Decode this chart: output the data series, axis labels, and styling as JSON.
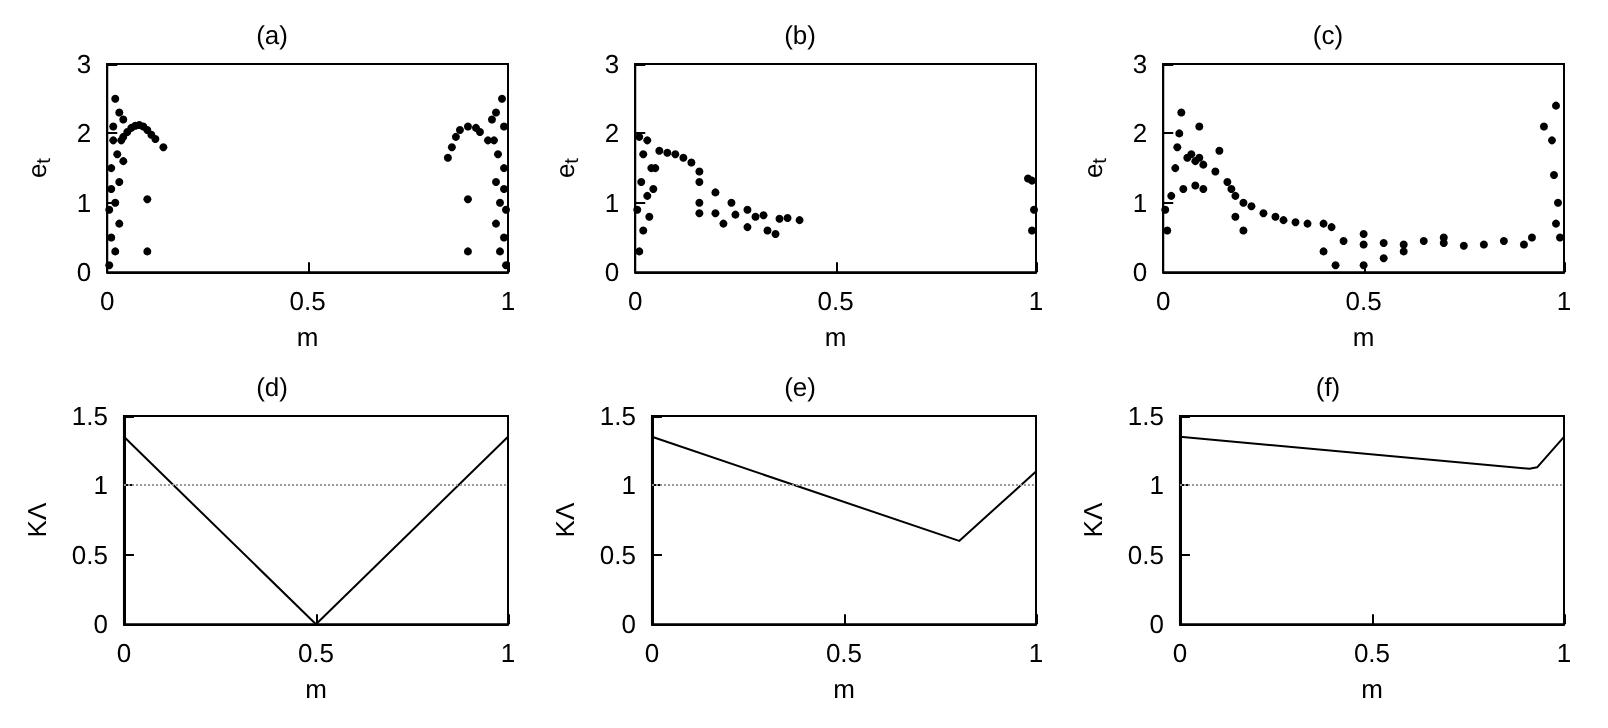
{
  "chart_data": [
    {
      "type": "scatter",
      "title": "(a)",
      "xlabel": "m",
      "ylabel": "e$_{t}$",
      "xlim": [
        0,
        1
      ],
      "ylim": [
        0,
        3
      ],
      "xticks": [
        0,
        0.5,
        1
      ],
      "yticks": [
        0,
        1,
        2,
        3
      ],
      "grid": false,
      "marker": "circle",
      "series": [
        {
          "color": "#000000",
          "x": [
            0.005,
            0.01,
            0.02,
            0.005,
            0.02,
            0.03,
            0.01,
            0.025,
            0.035,
            0.015,
            0.03,
            0.02,
            0.04,
            0.01,
            0.03,
            0.015,
            0.04,
            0.04,
            0.05,
            0.06,
            0.07,
            0.08,
            0.09,
            0.1,
            0.11,
            0.12,
            0.14,
            0.1,
            0.1,
            0.9,
            0.9,
            0.85,
            0.86,
            0.87,
            0.88,
            0.9,
            0.92,
            0.93,
            0.95,
            0.995,
            0.99,
            0.98,
            0.995,
            0.98,
            0.97,
            0.99,
            0.975,
            0.965,
            0.99,
            0.97,
            0.985,
            0.96,
            0.99,
            0.97
          ],
          "values": [
            0.1,
            0.5,
            0.3,
            0.9,
            1.0,
            1.3,
            1.5,
            1.7,
            1.9,
            2.1,
            2.3,
            2.5,
            2.2,
            1.2,
            0.7,
            1.9,
            1.6,
            1.95,
            2.02,
            2.08,
            2.11,
            2.12,
            2.1,
            2.05,
            1.98,
            1.92,
            1.8,
            1.05,
            0.3,
            0.3,
            1.05,
            1.65,
            1.8,
            1.95,
            2.05,
            2.1,
            2.08,
            2.02,
            1.9,
            0.1,
            0.5,
            0.3,
            0.9,
            1.0,
            1.3,
            1.5,
            1.7,
            1.9,
            2.1,
            2.3,
            2.5,
            2.2,
            1.2,
            0.7
          ]
        }
      ]
    },
    {
      "type": "scatter",
      "title": "(b)",
      "xlabel": "m",
      "ylabel": "e$_{t}$",
      "xlim": [
        0,
        1
      ],
      "ylim": [
        0,
        3
      ],
      "xticks": [
        0,
        0.5,
        1
      ],
      "yticks": [
        0,
        1,
        2,
        3
      ],
      "grid": false,
      "marker": "circle",
      "series": [
        {
          "color": "#000000",
          "x": [
            0.01,
            0.02,
            0.005,
            0.03,
            0.015,
            0.04,
            0.02,
            0.03,
            0.01,
            0.045,
            0.035,
            0.05,
            0.06,
            0.08,
            0.1,
            0.12,
            0.14,
            0.16,
            0.16,
            0.16,
            0.16,
            0.2,
            0.24,
            0.28,
            0.32,
            0.36,
            0.2,
            0.25,
            0.3,
            0.22,
            0.28,
            0.33,
            0.35,
            0.38,
            0.41,
            0.98,
            0.99,
            0.995,
            0.99
          ],
          "values": [
            0.3,
            0.6,
            0.9,
            1.1,
            1.3,
            1.5,
            1.7,
            1.9,
            1.95,
            1.2,
            0.8,
            1.5,
            1.75,
            1.72,
            1.7,
            1.65,
            1.58,
            1.45,
            1.3,
            1.0,
            0.85,
            1.15,
            1.0,
            0.9,
            0.82,
            0.77,
            0.85,
            0.83,
            0.8,
            0.7,
            0.65,
            0.6,
            0.55,
            0.78,
            0.75,
            1.35,
            1.32,
            0.9,
            0.6
          ]
        }
      ]
    },
    {
      "type": "scatter",
      "title": "(c)",
      "xlabel": "m",
      "ylabel": "e$_{t}$",
      "xlim": [
        0,
        1
      ],
      "ylim": [
        0,
        3
      ],
      "xticks": [
        0,
        0.5,
        1
      ],
      "yticks": [
        0,
        1,
        2,
        3
      ],
      "grid": false,
      "marker": "circle",
      "series": [
        {
          "color": "#000000",
          "x": [
            0.01,
            0.005,
            0.02,
            0.03,
            0.04,
            0.045,
            0.035,
            0.05,
            0.06,
            0.07,
            0.08,
            0.09,
            0.1,
            0.09,
            0.13,
            0.14,
            0.08,
            0.1,
            0.16,
            0.17,
            0.18,
            0.2,
            0.22,
            0.25,
            0.28,
            0.3,
            0.33,
            0.36,
            0.4,
            0.42,
            0.2,
            0.18,
            0.4,
            0.43,
            0.45,
            0.5,
            0.55,
            0.6,
            0.65,
            0.7,
            0.75,
            0.8,
            0.85,
            0.9,
            0.92,
            0.5,
            0.5,
            0.6,
            0.7,
            0.55,
            0.95,
            0.97,
            0.98,
            0.975,
            0.985,
            0.99,
            0.98
          ],
          "values": [
            0.6,
            0.9,
            1.1,
            1.5,
            2.0,
            2.3,
            1.8,
            1.2,
            1.65,
            1.7,
            1.6,
            1.65,
            1.55,
            2.1,
            1.45,
            1.75,
            1.25,
            1.2,
            1.3,
            1.2,
            1.1,
            1.0,
            0.95,
            0.85,
            0.8,
            0.75,
            0.72,
            0.7,
            0.7,
            0.65,
            0.6,
            0.8,
            0.3,
            0.1,
            0.45,
            0.4,
            0.42,
            0.4,
            0.45,
            0.42,
            0.38,
            0.4,
            0.45,
            0.4,
            0.5,
            0.1,
            0.55,
            0.3,
            0.5,
            0.2,
            2.1,
            1.9,
            2.4,
            1.4,
            1.0,
            0.5,
            0.7
          ]
        }
      ]
    },
    {
      "type": "line",
      "title": "(d)",
      "xlabel": "m",
      "ylabel": "KΛ",
      "xlim": [
        0,
        1
      ],
      "ylim": [
        0,
        1.5
      ],
      "xticks": [
        0,
        0.5,
        1
      ],
      "yticks": [
        0,
        0.5,
        1,
        1.5
      ],
      "grid": false,
      "marker": "none",
      "line_style": "solid",
      "series": [
        {
          "color": "#000000",
          "x": [
            0,
            0.5,
            1
          ],
          "values": [
            1.35,
            0,
            1.35
          ]
        }
      ],
      "ref_lines": [
        {
          "axis": "y",
          "value": 1,
          "color": "#999999",
          "line_style": "dotted"
        }
      ]
    },
    {
      "type": "line",
      "title": "(e)",
      "xlabel": "m",
      "ylabel": "KΛ",
      "xlim": [
        0,
        1
      ],
      "ylim": [
        0,
        1.5
      ],
      "xticks": [
        0,
        0.5,
        1
      ],
      "yticks": [
        0,
        0.5,
        1,
        1.5
      ],
      "grid": false,
      "marker": "none",
      "line_style": "solid",
      "series": [
        {
          "color": "#000000",
          "x": [
            0,
            0.8,
            1
          ],
          "values": [
            1.35,
            0.6,
            1.1
          ]
        }
      ],
      "ref_lines": [
        {
          "axis": "y",
          "value": 1,
          "color": "#999999",
          "line_style": "dotted"
        }
      ]
    },
    {
      "type": "line",
      "title": "(f)",
      "xlabel": "m",
      "ylabel": "KΛ",
      "xlim": [
        0,
        1
      ],
      "ylim": [
        0,
        1.5
      ],
      "xticks": [
        0,
        0.5,
        1
      ],
      "yticks": [
        0,
        0.5,
        1,
        1.5
      ],
      "grid": false,
      "marker": "none",
      "line_style": "solid",
      "series": [
        {
          "color": "#000000",
          "x": [
            0,
            0.91,
            0.93,
            1
          ],
          "values": [
            1.35,
            1.12,
            1.13,
            1.35
          ]
        }
      ],
      "ref_lines": [
        {
          "axis": "y",
          "value": 1,
          "color": "#999999",
          "line_style": "dotted"
        }
      ]
    }
  ]
}
